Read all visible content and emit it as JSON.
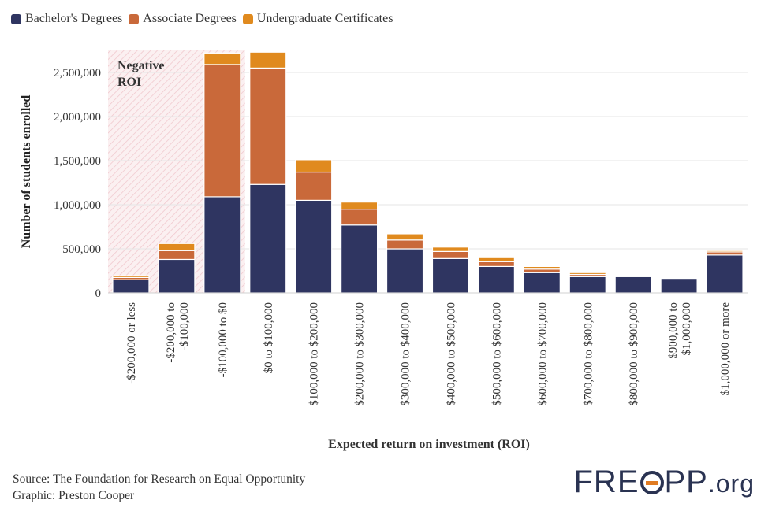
{
  "chart_data": {
    "type": "bar",
    "stacked": true,
    "categories": [
      "-$200,000 or less",
      "-$200,000 to\n-$100,000",
      "-$100,000 to $0",
      "$0 to $100,000",
      "$100,000 to $200,000",
      "$200,000 to $300,000",
      "$300,000 to $400,000",
      "$400,000 to $500,000",
      "$500,000 to $600,000",
      "$600,000 to $700,000",
      "$700,000 to $800,000",
      "$800,000 to $900,000",
      "$900,000 to\n$1,000,000",
      "$1,000,000 or more"
    ],
    "series": [
      {
        "name": "Bachelor's Degrees",
        "color": "#2f3561",
        "values": [
          150000,
          380000,
          1090000,
          1230000,
          1050000,
          770000,
          500000,
          390000,
          300000,
          230000,
          185000,
          185000,
          165000,
          430000
        ]
      },
      {
        "name": "Associate Degrees",
        "color": "#c9693a",
        "values": [
          25000,
          100000,
          1500000,
          1320000,
          320000,
          180000,
          100000,
          80000,
          55000,
          40000,
          25000,
          15000,
          10000,
          35000
        ]
      },
      {
        "name": "Undergraduate Certificates",
        "color": "#e08a1e",
        "values": [
          20000,
          80000,
          130000,
          180000,
          140000,
          80000,
          70000,
          50000,
          45000,
          30000,
          20000,
          10000,
          10000,
          15000
        ]
      }
    ],
    "ylabel": "Number of students enrolled",
    "xlabel": "Expected return on investment (ROI)",
    "ylim": [
      0,
      2750000
    ],
    "yticks": [
      0,
      500000,
      1000000,
      1500000,
      2000000,
      2500000
    ],
    "ytick_labels": [
      "0",
      "500,000",
      "1,000,000",
      "1,500,000",
      "2,000,000",
      "2,500,000"
    ],
    "annotation": "Negative\nROI",
    "shaded_categories": [
      0,
      1,
      2
    ],
    "grid": true,
    "legend": "top-left"
  },
  "legend": [
    {
      "label": "Bachelor's Degrees",
      "color": "#2f3561"
    },
    {
      "label": "Associate Degrees",
      "color": "#c9693a"
    },
    {
      "label": "Undergraduate Certificates",
      "color": "#e08a1e"
    }
  ],
  "footer": {
    "source": "Source: The Foundation for Research on Equal Opportunity",
    "graphic": "Graphic: Preston Cooper"
  },
  "logo": {
    "left": "FRE",
    "right": "PP",
    "org": ".org"
  }
}
